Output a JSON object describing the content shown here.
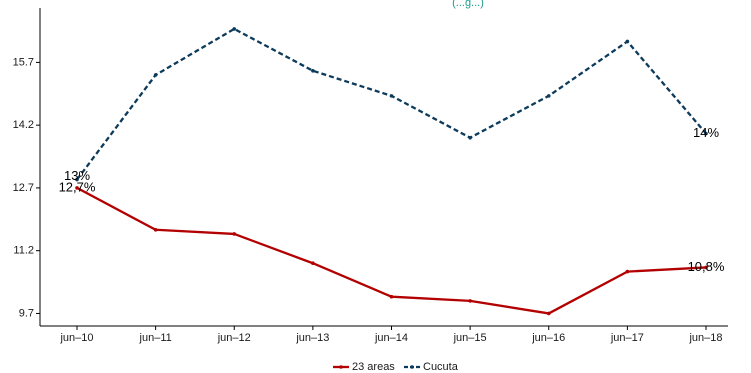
{
  "chart_data": {
    "type": "line",
    "title": "",
    "subtitle": "(...g...)",
    "xlabel": "",
    "ylabel": "",
    "categories": [
      "jun–10",
      "jun–11",
      "jun–12",
      "jun–13",
      "jun–14",
      "jun–15",
      "jun–16",
      "jun–17",
      "jun–18"
    ],
    "ylim": [
      9.4,
      17.0
    ],
    "yticks": [
      9.7,
      11.2,
      12.7,
      14.2,
      15.7
    ],
    "ytick_labels": [
      "9.7",
      "11.2",
      "12.7",
      "14.2",
      "15.7"
    ],
    "grid": false,
    "legend_position": "bottom",
    "series": [
      {
        "name": "23 areas",
        "color": "#b30000",
        "line_style": "solid",
        "values": [
          12.7,
          11.7,
          11.6,
          10.9,
          10.1,
          10.0,
          9.7,
          10.7,
          10.8
        ]
      },
      {
        "name": "Cucuta",
        "color": "#0d3b5c",
        "line_style": "dashed",
        "values": [
          12.9,
          15.4,
          16.5,
          15.5,
          14.9,
          13.9,
          14.9,
          16.2,
          14.0
        ]
      }
    ],
    "annotations": [
      {
        "text": "12,7%",
        "series": 0,
        "index": 0
      },
      {
        "text": "10,8%",
        "series": 0,
        "index": 8
      },
      {
        "text": "13%",
        "series": 1,
        "index": 0
      },
      {
        "text": "14%",
        "series": 1,
        "index": 8
      }
    ]
  }
}
